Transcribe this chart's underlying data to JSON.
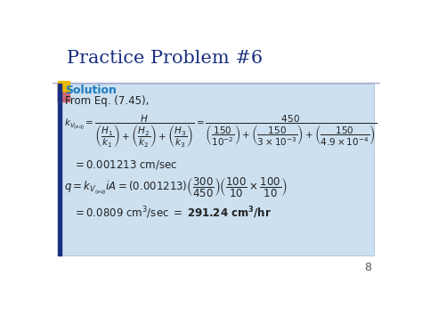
{
  "title": "Practice Problem #6",
  "title_color": "#1a3080",
  "bg_color": "#ffffff",
  "box_color": "#cce0f0",
  "solution_color": "#1a7abf",
  "text_color": "#222222",
  "page_number": "8",
  "title_fontsize": 15,
  "body_fontsize": 8.5
}
